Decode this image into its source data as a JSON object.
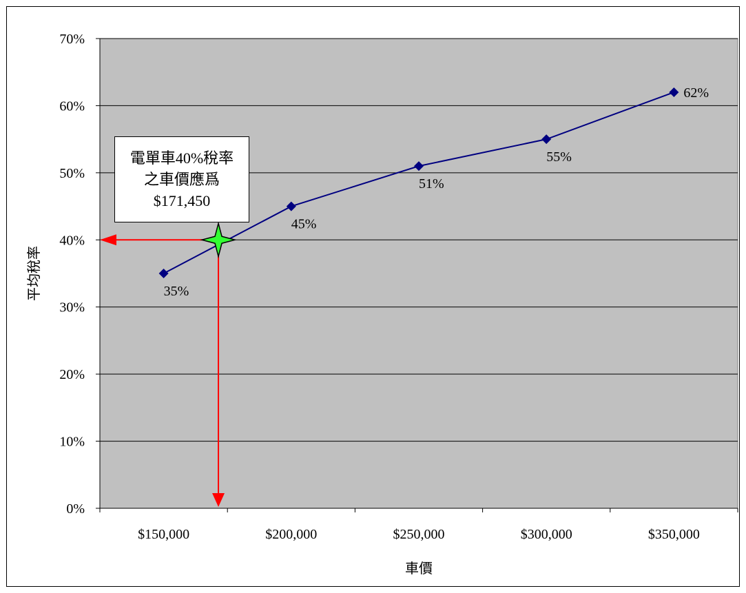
{
  "chart_data": {
    "type": "line",
    "title": "",
    "xlabel": "車價",
    "ylabel": "平均稅率",
    "xlim": [
      125000,
      375000
    ],
    "ylim": [
      0,
      70
    ],
    "x_ticks": [
      150000,
      200000,
      250000,
      300000,
      350000
    ],
    "x_tick_labels": [
      "$150,000",
      "$200,000",
      "$250,000",
      "$300,000",
      "$350,000"
    ],
    "y_ticks": [
      0,
      10,
      20,
      30,
      40,
      50,
      60,
      70
    ],
    "y_tick_labels": [
      "0%",
      "10%",
      "20%",
      "30%",
      "40%",
      "50%",
      "60%",
      "70%"
    ],
    "grid": true,
    "series": [
      {
        "x": [
          150000,
          200000,
          250000,
          300000,
          350000
        ],
        "y": [
          35,
          45,
          51,
          55,
          62
        ],
        "labels": [
          "35%",
          "45%",
          "51%",
          "55%",
          "62%"
        ],
        "color": "#000080"
      }
    ],
    "highlight": {
      "x": 171450,
      "y": 40,
      "color": "#33ff33",
      "arrow_color": "#ff0000"
    },
    "annotation": {
      "lines": [
        "電單車40%稅率",
        "之車價應爲",
        "$171,450"
      ]
    },
    "plot_background": "#c0c0c0"
  }
}
